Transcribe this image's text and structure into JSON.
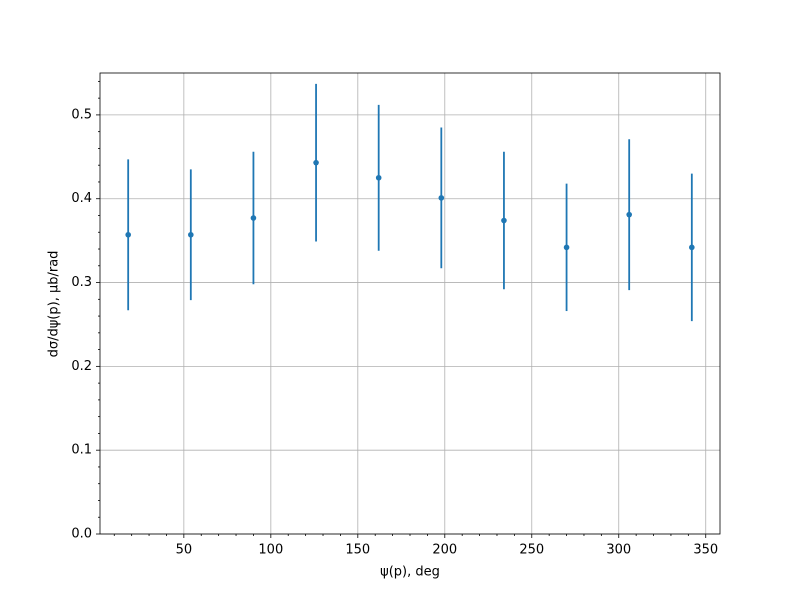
{
  "chart_data": {
    "type": "errorbar",
    "xlabel": "ψ(p), deg",
    "ylabel": "dσ/dψ(p), μb/rad",
    "x": [
      18,
      54,
      90,
      126,
      162,
      198,
      234,
      270,
      306,
      342
    ],
    "values": [
      0.357,
      0.357,
      0.377,
      0.443,
      0.425,
      0.401,
      0.374,
      0.342,
      0.381,
      0.342
    ],
    "errors": [
      0.09,
      0.078,
      0.079,
      0.094,
      0.087,
      0.084,
      0.082,
      0.076,
      0.09,
      0.088
    ],
    "color": "#1f77b4",
    "xlim": [
      1.8,
      358.2
    ],
    "ylim": [
      0,
      0.55
    ],
    "xticks": [
      50,
      100,
      150,
      200,
      250,
      300,
      350
    ],
    "yticks": [
      {
        "value": 0,
        "label": "0.0"
      },
      0.1,
      0.2,
      0.3,
      0.4,
      0.5
    ],
    "xminorticks": [
      10,
      20,
      30,
      40,
      60,
      70,
      80,
      90,
      110,
      120,
      130,
      140,
      160,
      170,
      180,
      190,
      210,
      220,
      230,
      240,
      260,
      270,
      280,
      290,
      310,
      320,
      330,
      340
    ],
    "yminorticks": [
      0.02,
      0.04,
      0.06,
      0.08,
      0.12,
      0.14,
      0.16,
      0.18,
      0.22,
      0.24,
      0.26,
      0.28,
      0.32,
      0.34,
      0.36,
      0.38,
      0.42,
      0.44,
      0.46,
      0.48,
      0.52,
      0.54
    ],
    "grid": true
  }
}
